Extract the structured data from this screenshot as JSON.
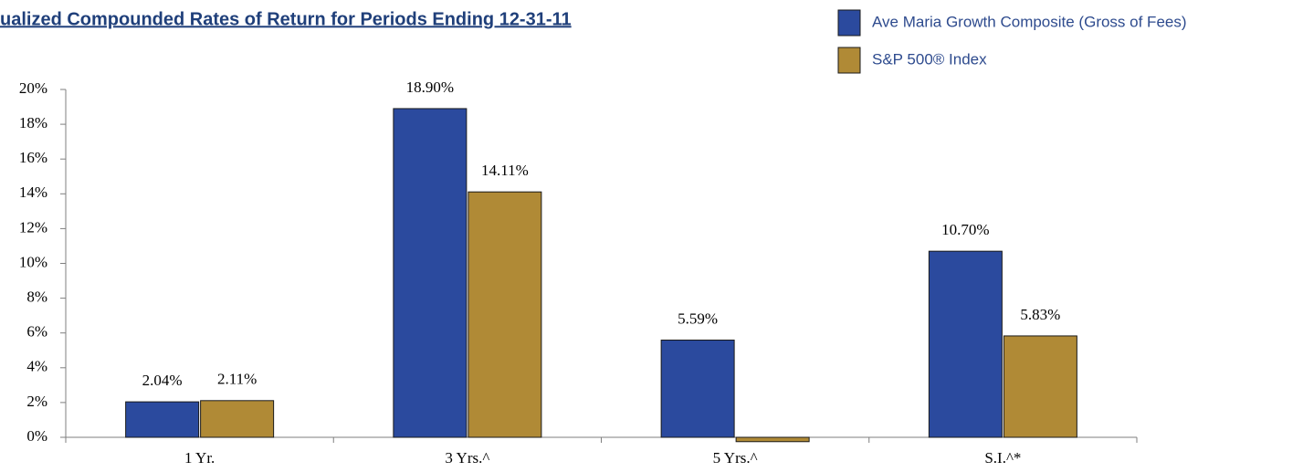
{
  "chart_data": {
    "type": "bar",
    "title": "ualized Compounded Rates of Return for Periods Ending 12-31-11",
    "categories": [
      "1 Yr.",
      "3 Yrs.^",
      "5 Yrs.^",
      "S.I.^*"
    ],
    "series": [
      {
        "name": "Ave Maria Growth Composite (Gross of Fees)",
        "color": "#2b4a9e",
        "values": [
          2.04,
          18.9,
          5.59,
          10.7
        ],
        "value_labels": [
          "2.04%",
          "18.90%",
          "5.59%",
          "10.70%"
        ]
      },
      {
        "name": "S&P 500® Index",
        "color": "#b08a36",
        "values": [
          2.11,
          14.11,
          -0.25,
          5.83
        ],
        "value_labels": [
          "2.11%",
          "14.11%",
          null,
          "5.83%"
        ]
      }
    ],
    "ylim": [
      0,
      20
    ],
    "yticks": [
      {
        "value": 0,
        "label": "0%"
      },
      {
        "value": 2,
        "label": "2%"
      },
      {
        "value": 4,
        "label": "4%"
      },
      {
        "value": 6,
        "label": "6%"
      },
      {
        "value": 8,
        "label": "8%"
      },
      {
        "value": 10,
        "label": "10%"
      },
      {
        "value": 12,
        "label": "12%"
      },
      {
        "value": 14,
        "label": "14%"
      },
      {
        "value": 16,
        "label": "16%"
      },
      {
        "value": 18,
        "label": "18%"
      },
      {
        "value": 20,
        "label": "20%"
      }
    ],
    "grid": false,
    "legend": "top-right"
  }
}
